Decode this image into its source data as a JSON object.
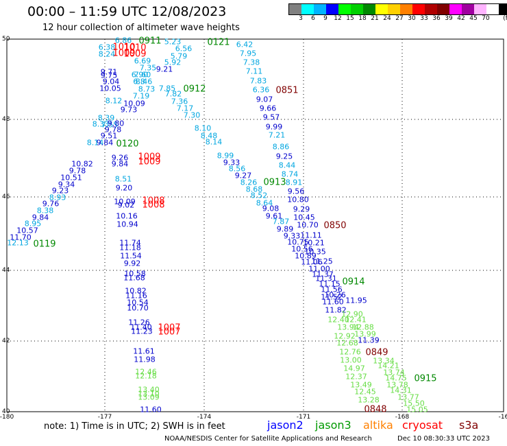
{
  "header": {
    "title": "00:00 – 11:59 UTC 12/08/2023",
    "subtitle": "12 hour collection of altimeter wave heights"
  },
  "colorscale": {
    "unit": "(ft)",
    "colors": [
      "#808080",
      "#00ffff",
      "#00b4ff",
      "#0000ff",
      "#00ff00",
      "#00d000",
      "#008800",
      "#ffff00",
      "#ffd000",
      "#ff8000",
      "#ff0000",
      "#b00000",
      "#800000",
      "#ff00ff",
      "#a000a0",
      "#ffb4ff",
      "#ffffff",
      "#000000"
    ],
    "labels": [
      "3",
      "6",
      "9",
      "12",
      "15",
      "18",
      "21",
      "24",
      "27",
      "30",
      "33",
      "36",
      "39",
      "42",
      "45",
      "70"
    ]
  },
  "axes": {
    "lon_labels": [
      "-180",
      "-177",
      "-174",
      "-171",
      "-168",
      "-16"
    ],
    "lat_labels": [
      "50",
      "48",
      "46",
      "44",
      "42",
      "40"
    ]
  },
  "map_labels": {
    "cyan": [
      "6.86",
      "6.38",
      "8.24",
      "5.23",
      "6.56",
      "5.79",
      "6.69",
      "5.92",
      "7.35",
      "7.60",
      "6.90",
      "6.8",
      "8.46",
      "8.73",
      "7.85",
      "7.82",
      "7.19",
      "7.36",
      "8.12",
      "7.17",
      "7.30",
      "8.39",
      "7.55",
      "8.10",
      "8.33",
      "8.48",
      "8.14",
      "8.14",
      "8.99",
      "8.51",
      "8.56",
      "8.93",
      "8.38",
      "8.95",
      "12.13",
      "6.42",
      "7.95",
      "7.38",
      "7.11",
      "7.83",
      "6.36",
      "7.21",
      "8.86",
      "8.44",
      "8.74",
      "8.91",
      "8.26",
      "8.68",
      "8.52",
      "8.64",
      "7.87"
    ],
    "blue": [
      "9.71",
      "9.75",
      "9.04",
      "10.05",
      "9.21",
      "10.09",
      "9.73",
      "9.80",
      "9.78",
      "9.51",
      "9.84",
      "9.26",
      "9.84",
      "10.82",
      "9.78",
      "10.51",
      "9.34",
      "9.23",
      "9.76",
      "9.84",
      "10.57",
      "11.70",
      "9.20",
      "10.09",
      "9.02",
      "10.16",
      "10.94",
      "11.74",
      "11.18",
      "11.54",
      "9.92",
      "10.58",
      "11.68",
      "10.82",
      "11.16",
      "10.54",
      "10.70",
      "11.26",
      "11.40",
      "11.23",
      "11.61",
      "11.98",
      "11.60",
      "9.07",
      "9.66",
      "9.57",
      "9.99",
      "9.25",
      "9.33",
      "9.27",
      "9.56",
      "10.80",
      "9.29",
      "9.08",
      "9.61",
      "10.45",
      "10.70",
      "9.89",
      "11.11",
      "9.33",
      "10.75",
      "10.21",
      "10.35",
      "10.56",
      "10.89",
      "11.06",
      "11.25",
      "11.00",
      "11.37",
      "11.31",
      "11.15",
      "11.56",
      "11.52",
      "11.60",
      "10.26",
      "11.95",
      "11.82",
      "11.39",
      "11.59"
    ],
    "light_green": [
      "12.46",
      "12.18",
      "13.40",
      "13.10",
      "13.09",
      "12.90",
      "12.40",
      "12.41",
      "12.88",
      "13.94",
      "13.99",
      "12.92",
      "12.68",
      "12.76",
      "13.00",
      "14.97",
      "12.37",
      "13.49",
      "12.45",
      "13.28",
      "13.34",
      "14.21",
      "13.74",
      "14.75",
      "13.78",
      "14.31",
      "13.77",
      "15.50",
      "15.05",
      "15.89"
    ],
    "tracks": {
      "green": [
        "0911",
        "0121",
        "0912",
        "0120",
        "0119",
        "0913",
        "0914",
        "0915"
      ],
      "red": [
        "1010",
        "1010",
        "1009",
        "1009",
        "1009",
        "1009",
        "1008",
        "1008",
        "1007",
        "1007"
      ],
      "darkred": [
        "0851",
        "0850",
        "0849",
        "0848"
      ]
    }
  },
  "footer": {
    "note": "note:  1) Time is in UTC;  2) SWH is in feet",
    "legend": [
      {
        "name": "jason2",
        "color": "#0000ff"
      },
      {
        "name": "jason3",
        "color": "#009900"
      },
      {
        "name": "altika",
        "color": "#ff8000"
      },
      {
        "name": "cryosat",
        "color": "#ff0000"
      },
      {
        "name": "s3a",
        "color": "#800000"
      }
    ],
    "credit": "NOAA/NESDIS Center for Satellite Applications and Research",
    "timestamp": "Dec 10 08:30:33 UTC 2023"
  }
}
